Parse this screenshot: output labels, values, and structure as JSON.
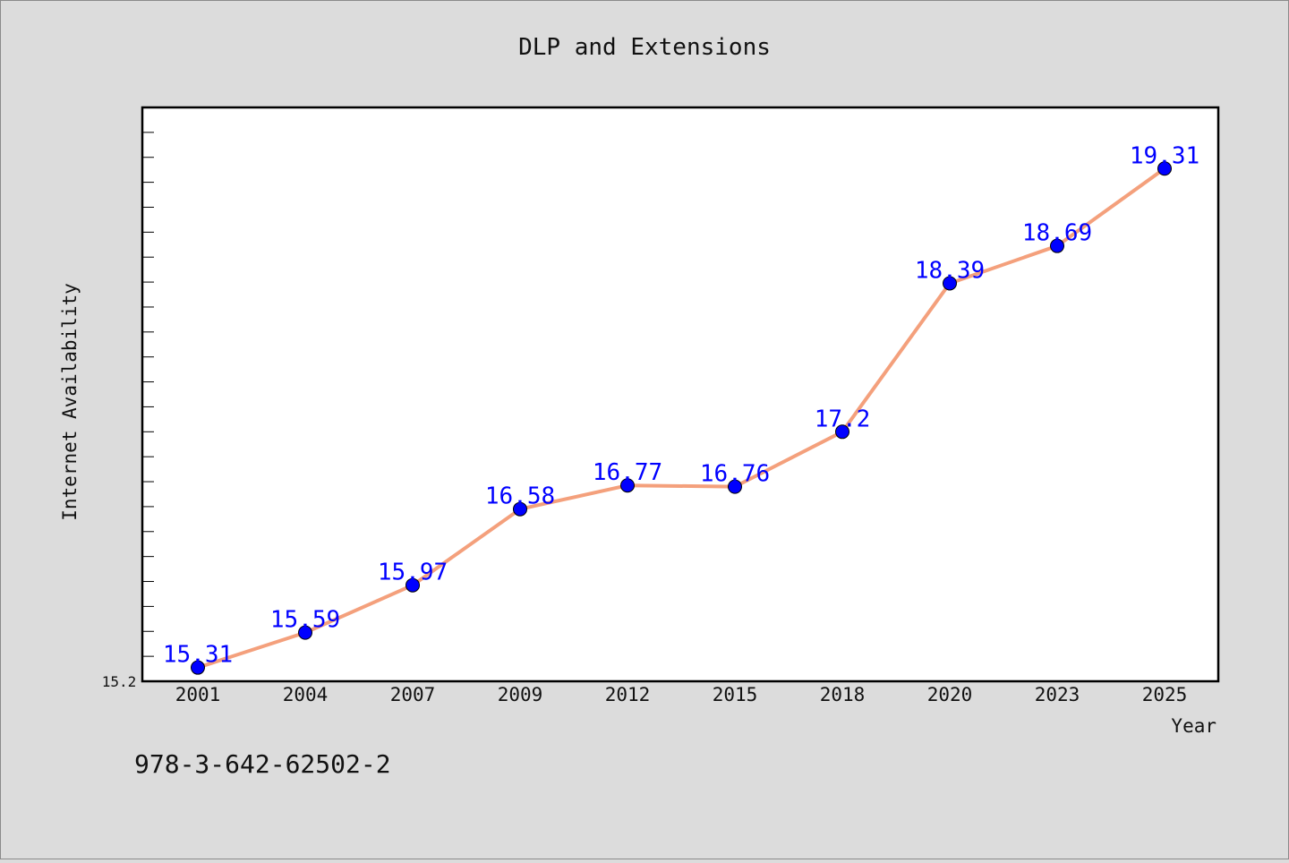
{
  "chart_data": {
    "type": "line",
    "title": "DLP and Extensions",
    "xlabel": "Year",
    "ylabel": "Internet Availability",
    "categories": [
      "2001",
      "2004",
      "2007",
      "2009",
      "2012",
      "2015",
      "2018",
      "2020",
      "2023",
      "2025"
    ],
    "series": [
      {
        "values": [
          15.31,
          15.59,
          15.97,
          16.58,
          16.77,
          16.76,
          17.2,
          18.39,
          18.69,
          19.31
        ]
      }
    ],
    "data_labels": [
      "15.31",
      "15.59",
      "15.97",
      "16.58",
      "16.77",
      "16.76",
      "17.2",
      "18.39",
      "18.69",
      "19.31"
    ],
    "ylim": [
      15.2,
      19.8
    ],
    "y_tick_labels": [
      "15.2"
    ],
    "y_minor_ticks_per_unit": 5,
    "grid": false,
    "legend": "none",
    "colors": {
      "line": "#f4a07c",
      "marker": "#0000ff",
      "data_label": "#0000ff",
      "background": "#dcdcdc",
      "plot_background": "#ffffff"
    }
  },
  "footnote": "978-3-642-62502-2"
}
